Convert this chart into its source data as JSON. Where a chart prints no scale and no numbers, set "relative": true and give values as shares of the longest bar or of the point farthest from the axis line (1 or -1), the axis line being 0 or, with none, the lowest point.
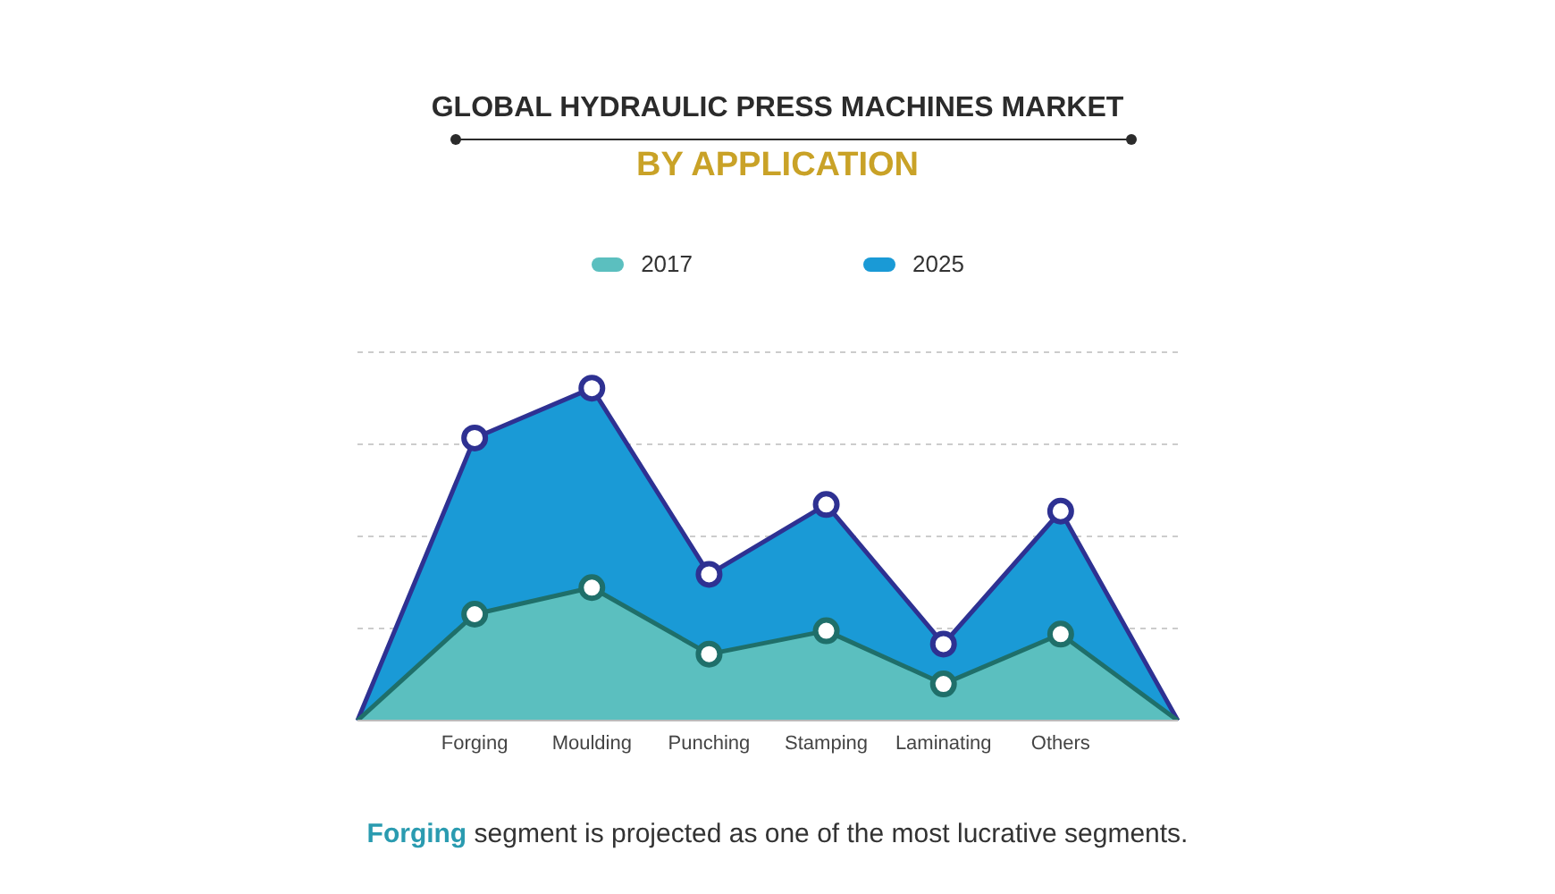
{
  "chart_data": {
    "type": "area",
    "title": "GLOBAL HYDRAULIC PRESS MACHINES MARKET",
    "subtitle": "BY APPLICATION",
    "relative": true,
    "categories": [
      null,
      "Forging",
      "Moulding",
      "Punching",
      "Stamping",
      "Laminating",
      "Others",
      null
    ],
    "series": [
      {
        "name": "2017",
        "color": "#5bbfbf",
        "values": [
          0,
          0.32,
          0.4,
          0.2,
          0.27,
          0.11,
          0.26,
          0
        ]
      },
      {
        "name": "2025",
        "color": "#1a9ad6",
        "values": [
          0,
          0.85,
          1,
          0.44,
          0.65,
          0.23,
          0.63,
          0
        ]
      }
    ],
    "grid": "y",
    "legend": "top",
    "marker": "circle",
    "annotations": [
      "Forging segment is projected as one of the most lucrative segments."
    ]
  }
}
